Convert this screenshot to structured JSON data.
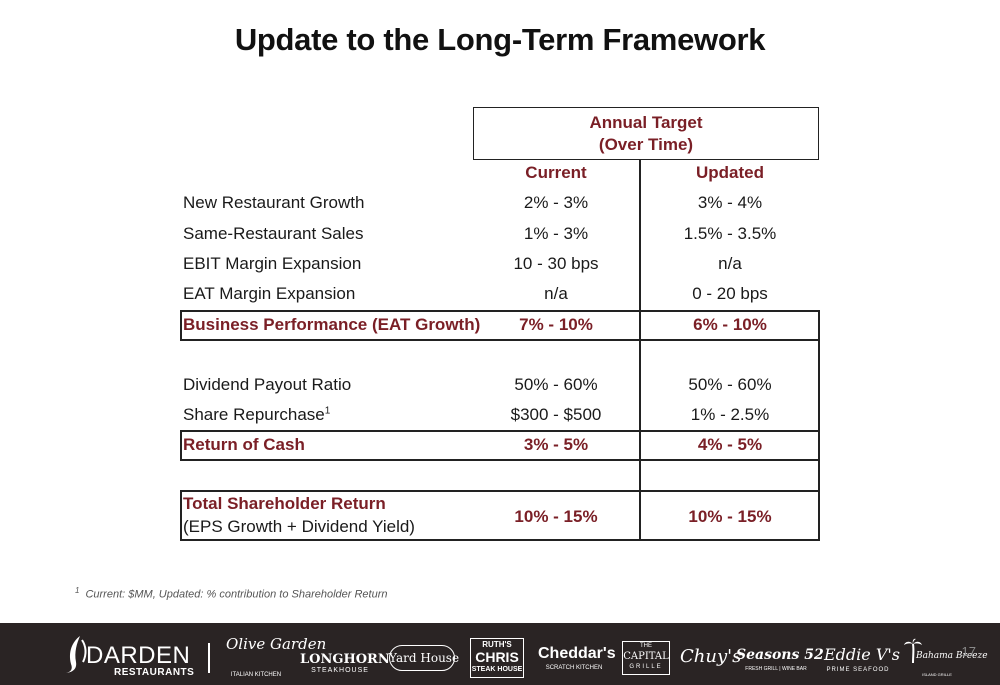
{
  "title": "Update to the Long-Term Framework",
  "header": {
    "line1": "Annual Target",
    "line2": "(Over Time)"
  },
  "columns": {
    "current": "Current",
    "updated": "Updated"
  },
  "rows": [
    {
      "label": "New Restaurant Growth",
      "current": "2% - 3%",
      "updated": "3% - 4%"
    },
    {
      "label": "Same-Restaurant Sales",
      "current": "1% - 3%",
      "updated": "1.5% - 3.5%"
    },
    {
      "label": "EBIT Margin Expansion",
      "current": "10 - 30 bps",
      "updated": "n/a"
    },
    {
      "label": "EAT Margin Expansion",
      "current": "n/a",
      "updated": "0 - 20 bps"
    },
    {
      "label": "Business Performance (EAT Growth)",
      "current": "7% - 10%",
      "updated": "6% - 10%"
    },
    {
      "label": "Dividend Payout Ratio",
      "current": "50% - 60%",
      "updated": "50% - 60%"
    },
    {
      "label": "Share Repurchase",
      "sup": "1",
      "current": "$300 - $500",
      "updated": "1% - 2.5%"
    },
    {
      "label": "Return of Cash",
      "current": "3% - 5%",
      "updated": "4% - 5%"
    },
    {
      "label": "Total Shareholder Return",
      "sublabel": "(EPS Growth + Dividend Yield)",
      "current": "10% - 15%",
      "updated": "10% - 15%"
    }
  ],
  "footnote": {
    "marker": "1",
    "text": "Current: $MM, Updated: % contribution to Shareholder Return"
  },
  "footer": {
    "brands": {
      "darden": "DARDEN",
      "darden_sub": "RESTAURANTS",
      "olive_garden": "Olive Garden",
      "olive_garden_sub": "ITALIAN KITCHEN",
      "longhorn": "LONGHORN",
      "longhorn_sub": "STEAKHOUSE",
      "yard_house": "Yard House",
      "ruths_top": "RUTH'S",
      "ruths_mid": "CHRIS",
      "ruths_bot": "STEAK HOUSE",
      "cheddars": "Cheddar's",
      "cheddars_sub": "SCRATCH KITCHEN",
      "capital_top": "THE",
      "capital": "CAPITAL",
      "capital_sub": "GRILLE",
      "chuys": "Chuy's",
      "seasons": "Seasons 52",
      "seasons_sub": "FRESH GRILL | WINE BAR",
      "eddie": "Eddie V's",
      "eddie_sub": "PRIME SEAFOOD",
      "bahama": "Bahama Breeze",
      "bahama_sub": "ISLAND GRILLE"
    },
    "page_number": "17"
  }
}
